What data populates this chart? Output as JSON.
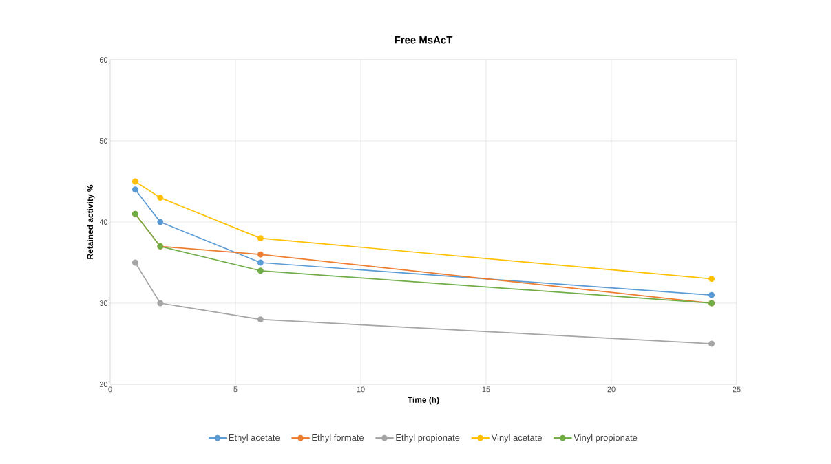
{
  "chart_data": {
    "type": "line",
    "title": "Free MsAcT",
    "xlabel": "Time (h)",
    "ylabel": "Retained activity %",
    "x": [
      1,
      2,
      6,
      24
    ],
    "series": [
      {
        "name": "Ethyl acetate",
        "color": "#5b9bd5",
        "values": [
          44,
          40,
          35,
          31
        ]
      },
      {
        "name": "Ethyl formate",
        "color": "#ed7d31",
        "values": [
          41,
          37,
          36,
          30
        ]
      },
      {
        "name": "Ethyl propionate",
        "color": "#a5a5a5",
        "values": [
          35,
          30,
          28,
          25
        ]
      },
      {
        "name": "Vinyl acetate",
        "color": "#ffc000",
        "values": [
          45,
          43,
          38,
          33
        ]
      },
      {
        "name": "Vinyl propionate",
        "color": "#70ad47",
        "values": [
          41,
          37,
          34,
          30
        ]
      }
    ],
    "xlim": [
      0,
      25
    ],
    "xticks": [
      0,
      5,
      10,
      15,
      20,
      25
    ],
    "ylim": [
      20,
      60
    ],
    "yticks": [
      20,
      30,
      40,
      50,
      60
    ],
    "grid": true,
    "legend": "bottom",
    "marker": "circle",
    "line_style": "solid"
  }
}
